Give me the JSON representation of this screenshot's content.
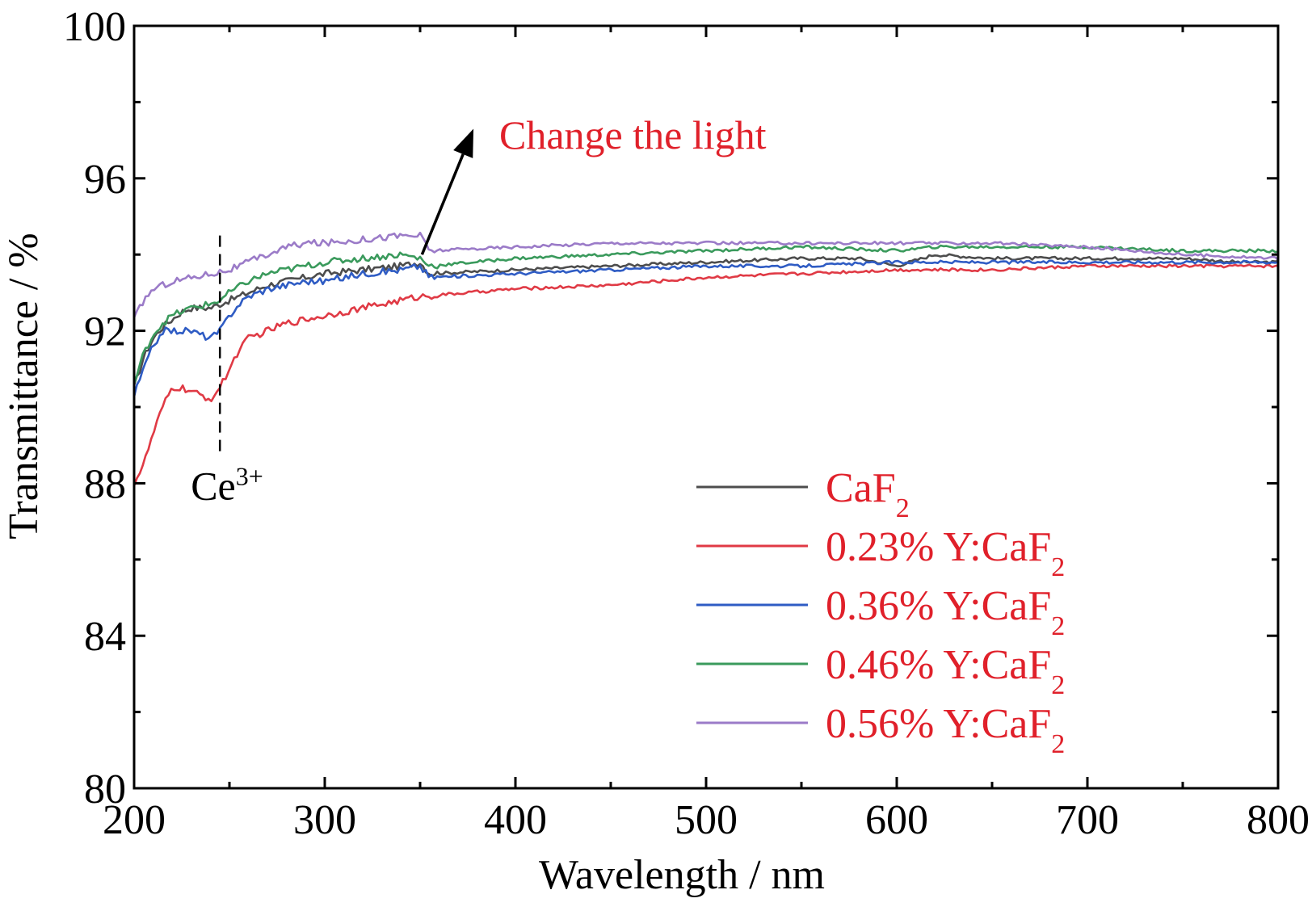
{
  "chart_data": {
    "type": "line",
    "xlabel": "Wavelength / nm",
    "ylabel": "Transmittance / %",
    "xlim": [
      200,
      800
    ],
    "ylim": [
      80,
      100
    ],
    "xticks": [
      "200",
      "300",
      "400",
      "500",
      "600",
      "700",
      "800"
    ],
    "yticks": [
      "80",
      "84",
      "88",
      "92",
      "96",
      "100"
    ],
    "grid": false,
    "legend_position": "bottom-right",
    "series": [
      {
        "name": "CaF2",
        "label_main": "CaF",
        "label_sub": "2",
        "color": "#4d4d4d",
        "x": [
          200,
          205,
          210,
          215,
          220,
          225,
          230,
          240,
          245,
          250,
          260,
          270,
          280,
          290,
          300,
          320,
          340,
          350,
          355,
          400,
          450,
          500,
          550,
          580,
          600,
          620,
          650,
          700,
          750,
          780,
          800
        ],
        "y": [
          90.5,
          91.3,
          91.8,
          92.1,
          92.3,
          92.5,
          92.6,
          92.6,
          92.7,
          92.8,
          93.0,
          93.2,
          93.3,
          93.4,
          93.5,
          93.6,
          93.7,
          93.8,
          93.5,
          93.6,
          93.7,
          93.8,
          93.9,
          93.9,
          93.7,
          94.0,
          93.9,
          93.9,
          93.9,
          93.8,
          93.8
        ]
      },
      {
        "name": "0.23% Y:CaF2",
        "label_main": "0.23% Y:CaF",
        "label_sub": "2",
        "color": "#e03a45",
        "x": [
          200,
          205,
          210,
          215,
          220,
          225,
          230,
          240,
          245,
          250,
          255,
          260,
          270,
          280,
          290,
          300,
          320,
          340,
          350,
          400,
          450,
          500,
          550,
          600,
          650,
          700,
          750,
          800
        ],
        "y": [
          88.0,
          88.5,
          89.3,
          90.0,
          90.5,
          90.5,
          90.4,
          90.2,
          90.5,
          91.0,
          91.5,
          91.8,
          92.0,
          92.2,
          92.3,
          92.4,
          92.6,
          92.8,
          92.9,
          93.1,
          93.2,
          93.4,
          93.5,
          93.6,
          93.6,
          93.7,
          93.7,
          93.7
        ]
      },
      {
        "name": "0.36% Y:CaF2",
        "label_main": "0.36% Y:CaF",
        "label_sub": "2",
        "color": "#2f5cc4",
        "x": [
          200,
          205,
          210,
          215,
          220,
          230,
          240,
          245,
          250,
          255,
          260,
          270,
          280,
          290,
          300,
          320,
          340,
          350,
          355,
          400,
          450,
          500,
          550,
          600,
          650,
          700,
          750,
          800
        ],
        "y": [
          90.3,
          91.0,
          91.6,
          92.0,
          92.0,
          92.0,
          91.8,
          92.0,
          92.4,
          92.7,
          92.9,
          93.1,
          93.2,
          93.3,
          93.3,
          93.5,
          93.6,
          93.7,
          93.4,
          93.5,
          93.6,
          93.7,
          93.7,
          93.8,
          93.8,
          93.8,
          93.8,
          93.8
        ]
      },
      {
        "name": "0.46% Y:CaF2",
        "label_main": "0.46% Y:CaF",
        "label_sub": "2",
        "color": "#3a9a5c",
        "x": [
          200,
          205,
          210,
          215,
          220,
          230,
          240,
          245,
          250,
          260,
          270,
          280,
          290,
          300,
          320,
          340,
          350,
          355,
          400,
          450,
          500,
          550,
          600,
          620,
          650,
          700,
          750,
          800
        ],
        "y": [
          90.6,
          91.4,
          91.9,
          92.2,
          92.4,
          92.6,
          92.7,
          92.8,
          93.0,
          93.3,
          93.5,
          93.6,
          93.7,
          93.8,
          93.9,
          94.0,
          93.9,
          93.7,
          93.9,
          94.0,
          94.1,
          94.2,
          94.1,
          94.2,
          94.2,
          94.2,
          94.1,
          94.1
        ]
      },
      {
        "name": "0.56% Y:CaF2",
        "label_main": "0.56% Y:CaF",
        "label_sub": "2",
        "color": "#9b7bc8",
        "x": [
          200,
          205,
          210,
          220,
          230,
          240,
          250,
          260,
          270,
          280,
          290,
          300,
          320,
          340,
          350,
          355,
          400,
          450,
          500,
          550,
          600,
          650,
          700,
          750,
          800
        ],
        "y": [
          92.3,
          92.8,
          93.1,
          93.3,
          93.4,
          93.5,
          93.6,
          93.8,
          94.0,
          94.2,
          94.3,
          94.3,
          94.4,
          94.5,
          94.5,
          94.1,
          94.2,
          94.3,
          94.3,
          94.3,
          94.3,
          94.3,
          94.2,
          94.0,
          93.9
        ]
      }
    ],
    "annotations": {
      "ce_label_main": "Ce",
      "ce_label_sup": "3+",
      "ce_x": 245,
      "ce_line_y": [
        88.8,
        94.5
      ],
      "arrow_text": "Change the light",
      "arrow_text_color": "#e0202a",
      "arrow_from": [
        351,
        94.0
      ],
      "arrow_to": [
        378,
        97.3
      ]
    },
    "legend_text_color": "#e0202a"
  }
}
